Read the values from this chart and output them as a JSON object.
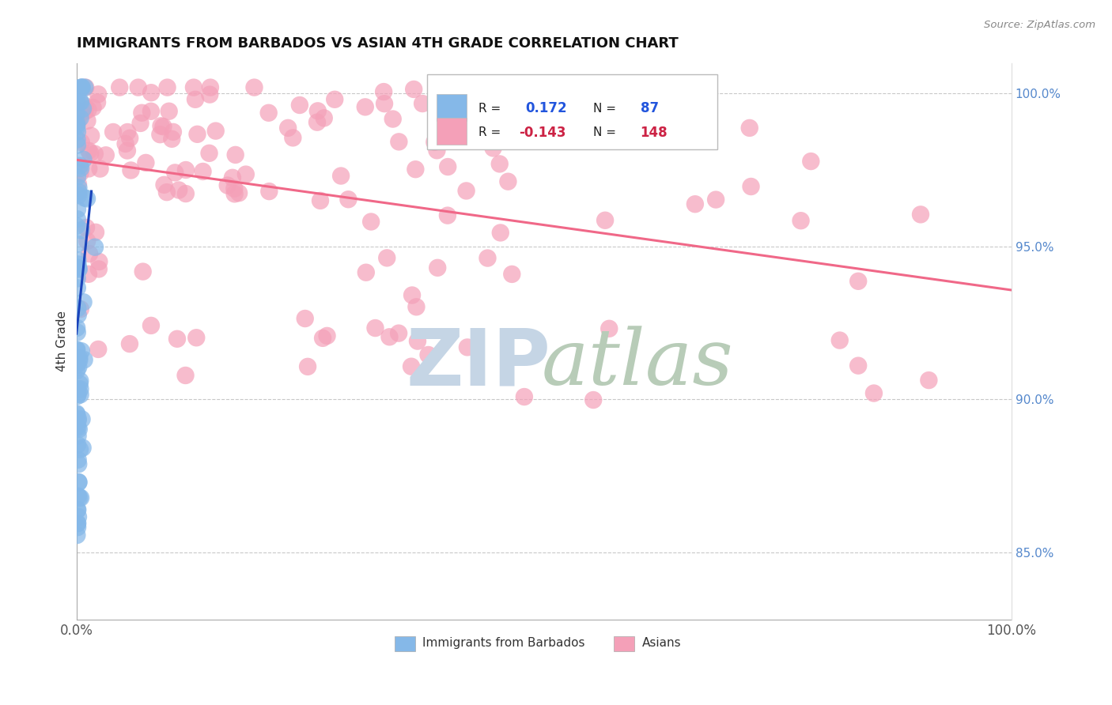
{
  "title": "IMMIGRANTS FROM BARBADOS VS ASIAN 4TH GRADE CORRELATION CHART",
  "source": "Source: ZipAtlas.com",
  "ylabel": "4th Grade",
  "legend_blue_R": "0.172",
  "legend_blue_N": "87",
  "legend_pink_R": "-0.143",
  "legend_pink_N": "148",
  "blue_color": "#85b8e8",
  "pink_color": "#f4a0b8",
  "blue_line_color": "#1a44bb",
  "pink_line_color": "#f06888",
  "watermark_zip_color": "#c5d5e5",
  "watermark_atlas_color": "#b8ccb8",
  "ylim_min": 0.828,
  "ylim_max": 1.01,
  "xlim_min": 0.0,
  "xlim_max": 1.0,
  "y_ticks": [
    0.85,
    0.9,
    0.95,
    1.0
  ],
  "y_tick_labels": [
    "85.0%",
    "90.0%",
    "95.0%",
    "100.0%"
  ],
  "title_fontsize": 13,
  "blue_seed": 77,
  "pink_seed": 99
}
